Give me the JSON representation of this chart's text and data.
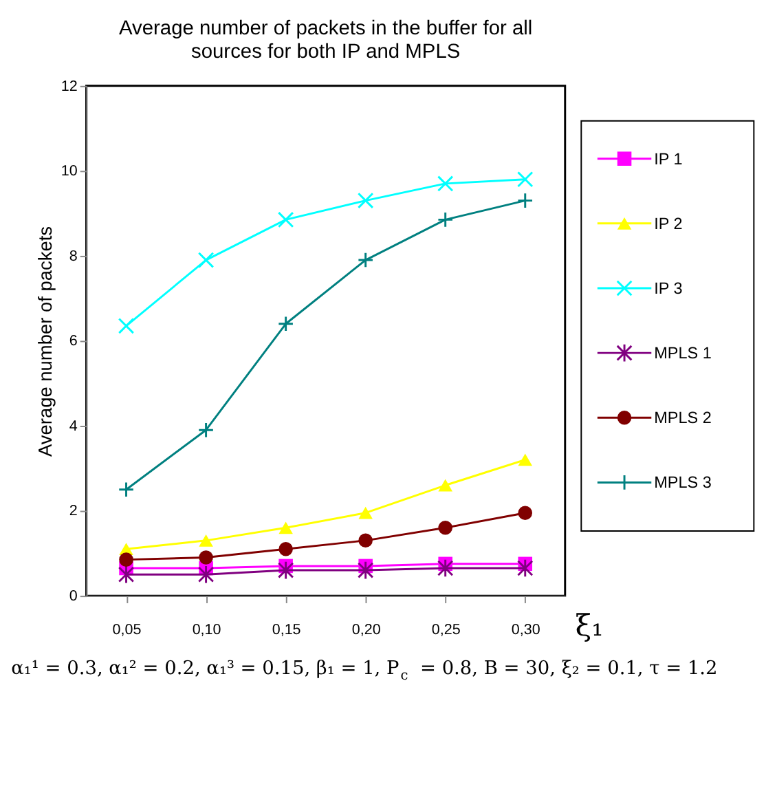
{
  "chart_data": {
    "type": "line",
    "title": [
      "Average number of packets in the buffer for all",
      "sources for both IP and MPLS"
    ],
    "xlabel": "ξ₁",
    "ylabel": "Average number of packets",
    "categories": [
      "0,05",
      "0,10",
      "0,15",
      "0,20",
      "0,25",
      "0,30"
    ],
    "ylim": [
      0,
      12
    ],
    "yticks": [
      0,
      2,
      4,
      6,
      8,
      10,
      12
    ],
    "grid": false,
    "legend": "right",
    "series": [
      {
        "name": "IP 1",
        "color": "#ff00ff",
        "marker": "square",
        "values": [
          0.65,
          0.65,
          0.7,
          0.7,
          0.75,
          0.75
        ]
      },
      {
        "name": "IP 2",
        "color": "#ffff00",
        "marker": "triangle",
        "values": [
          1.1,
          1.3,
          1.6,
          1.95,
          2.6,
          3.2
        ]
      },
      {
        "name": "IP 3",
        "color": "#00ffff",
        "marker": "cross",
        "values": [
          6.35,
          7.9,
          8.85,
          9.3,
          9.7,
          9.8
        ]
      },
      {
        "name": "MPLS 1",
        "color": "#800080",
        "marker": "cross",
        "values": [
          0.5,
          0.5,
          0.6,
          0.6,
          0.65,
          0.65
        ]
      },
      {
        "name": "MPLS 2",
        "color": "#800000",
        "marker": "circle",
        "values": [
          0.85,
          0.9,
          1.1,
          1.3,
          1.6,
          1.95
        ]
      },
      {
        "name": "MPLS 3",
        "color": "#008080",
        "marker": "cross",
        "values": [
          2.5,
          3.9,
          6.4,
          7.9,
          8.85,
          9.3
        ]
      }
    ],
    "annotations": [
      "α₁¹ = 0.3, α₁² = 0.2, α₁³ = 0.15, β₁ = 1, P$_{c}$ = 0.8, B = 30, ξ₂ = 0.1, τ = 1.2"
    ]
  }
}
